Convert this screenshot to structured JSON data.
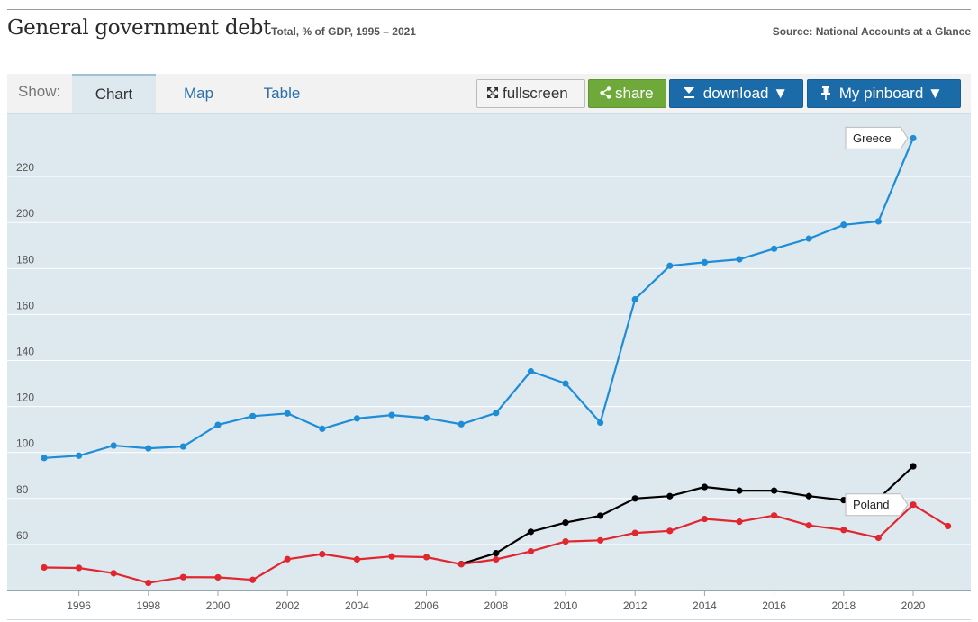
{
  "header": {
    "title": "General government debt",
    "subtitle": "Total, % of GDP, 1995 – 2021",
    "source": "Source: National Accounts at a Glance"
  },
  "toolbar": {
    "show_label": "Show:",
    "tabs": [
      {
        "label": "Chart",
        "active": true
      },
      {
        "label": "Map",
        "active": false
      },
      {
        "label": "Table",
        "active": false
      }
    ],
    "fullscreen_label": "fullscreen",
    "share_label": "share",
    "download_label": "download ▼",
    "pinboard_label": "My pinboard ▼"
  },
  "colors": {
    "greece": "#1f8dd6",
    "poland": "#e0262e",
    "third": "#000000",
    "plot_bg": "#dde8ef"
  },
  "chart_data": {
    "type": "line",
    "title": "General government debt",
    "subtitle": "Total, % of GDP, 1995 – 2021",
    "ylim": [
      40,
      240
    ],
    "yticks": [
      60,
      80,
      100,
      120,
      140,
      160,
      180,
      200,
      220
    ],
    "xticks": [
      1996,
      1998,
      2000,
      2002,
      2004,
      2006,
      2008,
      2010,
      2012,
      2014,
      2016,
      2018,
      2020
    ],
    "grid": true,
    "series": [
      {
        "name": "Greece",
        "color": "#1f8dd6",
        "x": [
          1995,
          1996,
          1997,
          1998,
          1999,
          2000,
          2001,
          2002,
          2003,
          2004,
          2005,
          2006,
          2007,
          2008,
          2009,
          2010,
          2011,
          2012,
          2013,
          2014,
          2015,
          2016,
          2017,
          2018,
          2019,
          2020
        ],
        "values": [
          97.6,
          98.6,
          103.0,
          101.8,
          102.6,
          112.0,
          115.8,
          117.0,
          110.3,
          114.8,
          116.3,
          115.0,
          112.3,
          117.2,
          135.3,
          130.0,
          113.0,
          166.6,
          181.2,
          182.7,
          184.0,
          188.6,
          193.0,
          199.0,
          200.5,
          236.7
        ]
      },
      {
        "name": "",
        "color": "#000000",
        "x": [
          2007,
          2008,
          2009,
          2010,
          2011,
          2012,
          2013,
          2014,
          2015,
          2016,
          2017,
          2018,
          2019,
          2020
        ],
        "values": [
          51.5,
          56.2,
          65.5,
          69.5,
          72.5,
          80.0,
          81.0,
          85.0,
          83.4,
          83.4,
          81.0,
          79.3,
          79.8,
          94.0
        ]
      },
      {
        "name": "Poland",
        "color": "#e0262e",
        "x": [
          1995,
          1996,
          1997,
          1998,
          1999,
          2000,
          2001,
          2002,
          2003,
          2004,
          2005,
          2006,
          2007,
          2008,
          2009,
          2010,
          2011,
          2012,
          2013,
          2014,
          2015,
          2016,
          2017,
          2018,
          2019,
          2020,
          2021
        ],
        "values": [
          50.0,
          49.8,
          47.5,
          43.3,
          45.8,
          45.7,
          44.6,
          53.6,
          55.8,
          53.5,
          54.8,
          54.5,
          51.4,
          53.5,
          57.0,
          61.3,
          61.8,
          65.0,
          65.9,
          71.1,
          69.9,
          72.6,
          68.3,
          66.3,
          62.9,
          77.3,
          68.0
        ]
      }
    ],
    "annotations": [
      {
        "label": "Greece",
        "series": "Greece",
        "x": 2020
      },
      {
        "label": "Poland",
        "series": "Poland",
        "x": 2020
      }
    ]
  }
}
